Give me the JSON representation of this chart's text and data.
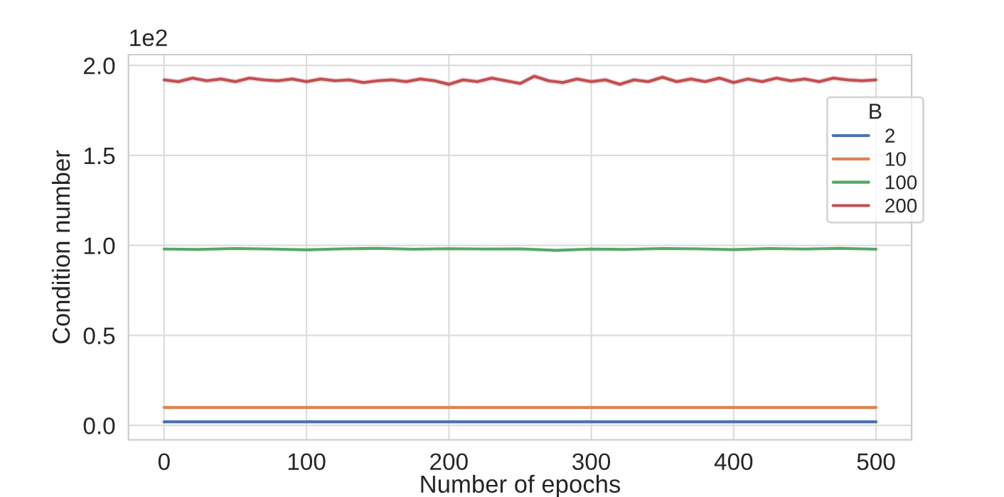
{
  "chart_data": {
    "type": "line",
    "xlabel": "Number of epochs",
    "ylabel": "Condition number",
    "legend_title": "B",
    "annotations": [
      "1e2"
    ],
    "xlim": [
      -25,
      525
    ],
    "xticks": [
      0,
      100,
      200,
      300,
      400,
      500
    ],
    "ylim": [
      -0.08,
      2.06
    ],
    "yticks": [
      {
        "value": 0,
        "label": "0.0"
      },
      {
        "value": 0.5,
        "label": "0.5"
      },
      {
        "value": 1,
        "label": "1.0"
      },
      {
        "value": 1.5,
        "label": "1.5"
      },
      {
        "value": 2,
        "label": "2.0"
      }
    ],
    "grid": true,
    "legend": "top right",
    "series": [
      {
        "name": "2",
        "color": "#4c72b0",
        "x": [
          0,
          500
        ],
        "values": [
          0.02,
          0.02
        ]
      },
      {
        "name": "10",
        "color": "#dd8452",
        "x": [
          0,
          500
        ],
        "values": [
          0.1,
          0.1
        ]
      },
      {
        "name": "100",
        "color": "#55a868",
        "x": [
          0,
          25,
          50,
          75,
          100,
          125,
          150,
          175,
          200,
          225,
          250,
          275,
          300,
          325,
          350,
          375,
          400,
          425,
          450,
          475,
          500
        ],
        "values": [
          0.98,
          0.978,
          0.983,
          0.98,
          0.976,
          0.981,
          0.984,
          0.979,
          0.982,
          0.98,
          0.981,
          0.973,
          0.98,
          0.978,
          0.983,
          0.981,
          0.977,
          0.983,
          0.98,
          0.984,
          0.979
        ]
      },
      {
        "name": "200",
        "color": "#c44e52",
        "x": [
          0,
          10,
          20,
          30,
          40,
          50,
          60,
          70,
          80,
          90,
          100,
          110,
          120,
          130,
          140,
          150,
          160,
          170,
          180,
          190,
          200,
          210,
          220,
          230,
          240,
          250,
          260,
          270,
          280,
          290,
          300,
          310,
          320,
          330,
          340,
          350,
          360,
          370,
          380,
          390,
          400,
          410,
          420,
          430,
          440,
          450,
          460,
          470,
          480,
          490,
          500
        ],
        "values": [
          1.92,
          1.91,
          1.93,
          1.915,
          1.925,
          1.91,
          1.93,
          1.92,
          1.915,
          1.925,
          1.91,
          1.925,
          1.915,
          1.92,
          1.905,
          1.915,
          1.92,
          1.91,
          1.925,
          1.915,
          1.895,
          1.92,
          1.91,
          1.93,
          1.915,
          1.9,
          1.94,
          1.915,
          1.905,
          1.925,
          1.91,
          1.92,
          1.895,
          1.92,
          1.91,
          1.935,
          1.91,
          1.925,
          1.91,
          1.93,
          1.905,
          1.925,
          1.91,
          1.93,
          1.915,
          1.925,
          1.91,
          1.93,
          1.92,
          1.915,
          1.92
        ],
        "lower": [
          1.905,
          1.895,
          1.915,
          1.9,
          1.91,
          1.895,
          1.915,
          1.905,
          1.9,
          1.91,
          1.895,
          1.91,
          1.9,
          1.905,
          1.89,
          1.9,
          1.905,
          1.895,
          1.91,
          1.9,
          1.88,
          1.905,
          1.895,
          1.915,
          1.9,
          1.885,
          1.925,
          1.9,
          1.89,
          1.91,
          1.895,
          1.905,
          1.88,
          1.905,
          1.895,
          1.92,
          1.895,
          1.91,
          1.895,
          1.915,
          1.89,
          1.91,
          1.895,
          1.915,
          1.9,
          1.91,
          1.895,
          1.915,
          1.905,
          1.9,
          1.905
        ],
        "upper": [
          1.935,
          1.925,
          1.945,
          1.93,
          1.94,
          1.925,
          1.945,
          1.935,
          1.93,
          1.94,
          1.925,
          1.94,
          1.93,
          1.935,
          1.92,
          1.93,
          1.935,
          1.925,
          1.94,
          1.93,
          1.91,
          1.935,
          1.925,
          1.945,
          1.93,
          1.915,
          1.955,
          1.93,
          1.92,
          1.94,
          1.925,
          1.935,
          1.91,
          1.935,
          1.925,
          1.95,
          1.925,
          1.94,
          1.925,
          1.945,
          1.92,
          1.94,
          1.925,
          1.945,
          1.93,
          1.94,
          1.925,
          1.945,
          1.935,
          1.93,
          1.935
        ]
      }
    ]
  }
}
